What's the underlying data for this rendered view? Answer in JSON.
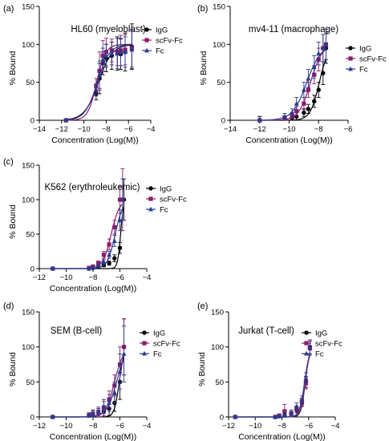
{
  "chart_data": [
    {
      "panel": "(a)",
      "type": "scatter",
      "title": "HL60 (myeloblast)",
      "xlabel": "Concentration (Log(M))",
      "ylabel": "% Bound",
      "xlim": [
        -14,
        -4
      ],
      "ylim": [
        0,
        150
      ],
      "xticks": [
        -14,
        -12,
        -10,
        -8,
        -6,
        -4
      ],
      "xtick_labels": [
        "−14",
        "−12",
        "−10",
        "−8",
        "−6",
        "−4"
      ],
      "yticks": [
        0,
        50,
        100,
        150
      ],
      "legend_position": "top-right",
      "series": [
        {
          "name": "IgG",
          "marker": "circle",
          "color": "#000000",
          "x": [
            -11.6,
            -8.9,
            -8.6,
            -8.3,
            -8.0,
            -7.5,
            -7.0,
            -6.7,
            -6.3,
            -5.7
          ],
          "y": [
            0,
            35,
            55,
            75,
            82,
            85,
            88,
            87,
            90,
            97
          ],
          "err": [
            2,
            8,
            20,
            15,
            18,
            18,
            22,
            20,
            25,
            30
          ]
        },
        {
          "name": "scFv-Fc",
          "marker": "square",
          "color": "#8b1a6b",
          "x": [
            -11.6,
            -8.9,
            -8.6,
            -8.3,
            -8.0,
            -7.5,
            -7.0,
            -6.7,
            -6.3,
            -5.7
          ],
          "y": [
            0,
            45,
            65,
            85,
            90,
            92,
            90,
            92,
            93,
            95
          ],
          "err": [
            2,
            10,
            25,
            20,
            18,
            15,
            18,
            20,
            20,
            25
          ]
        },
        {
          "name": "Fc",
          "marker": "triangle",
          "color": "#2a3b8f",
          "x": [
            -11.6,
            -8.9,
            -8.6,
            -8.3,
            -8.0,
            -7.5,
            -7.0,
            -6.7,
            -6.3,
            -5.7
          ],
          "y": [
            0,
            40,
            60,
            80,
            85,
            88,
            88,
            90,
            90,
            93
          ],
          "err": [
            2,
            8,
            18,
            15,
            15,
            15,
            20,
            18,
            20,
            25
          ]
        }
      ]
    },
    {
      "panel": "(b)",
      "type": "scatter",
      "title": "mv4-11 (macrophage)",
      "xlabel": "Concentration (Log(M))",
      "ylabel": "% Bound",
      "xlim": [
        -14,
        -6
      ],
      "ylim": [
        0,
        150
      ],
      "xticks": [
        -14,
        -12,
        -10,
        -8,
        -6
      ],
      "xtick_labels": [
        "−14",
        "−12",
        "−10",
        "−8",
        "−6"
      ],
      "yticks": [
        0,
        50,
        100,
        150
      ],
      "legend_position": "right",
      "series": [
        {
          "name": "IgG",
          "marker": "circle",
          "color": "#000000",
          "x": [
            -12,
            -10.3,
            -9.8,
            -9.5,
            -9.0,
            -8.7,
            -8.3,
            -8.0,
            -7.7,
            -7.5
          ],
          "y": [
            0,
            2,
            3,
            5,
            10,
            15,
            25,
            40,
            62,
            95
          ],
          "err": [
            5,
            3,
            4,
            5,
            5,
            6,
            8,
            10,
            15,
            20
          ]
        },
        {
          "name": "scFv-Fc",
          "marker": "square",
          "color": "#8b1a6b",
          "x": [
            -12,
            -10.3,
            -9.8,
            -9.5,
            -9.0,
            -8.7,
            -8.3,
            -8.0,
            -7.7,
            -7.5
          ],
          "y": [
            0,
            3,
            6,
            12,
            22,
            40,
            60,
            80,
            95,
            100
          ],
          "err": [
            5,
            3,
            4,
            6,
            8,
            10,
            12,
            15,
            18,
            20
          ]
        },
        {
          "name": "Fc",
          "marker": "triangle",
          "color": "#2a3b8f",
          "x": [
            -12,
            -10.3,
            -9.8,
            -9.5,
            -9.0,
            -8.7,
            -8.3,
            -8.0,
            -7.7,
            -7.5
          ],
          "y": [
            0,
            5,
            10,
            22,
            40,
            55,
            70,
            88,
            95,
            100
          ],
          "err": [
            5,
            4,
            5,
            8,
            10,
            12,
            15,
            15,
            18,
            20
          ]
        }
      ]
    },
    {
      "panel": "(c)",
      "type": "scatter",
      "title": "K562 (erythroleukemic)",
      "xlabel": "Concentration (Log(M))",
      "ylabel": "% Bound",
      "xlim": [
        -12,
        -4
      ],
      "ylim": [
        0,
        150
      ],
      "xticks": [
        -12,
        -10,
        -8,
        -6,
        -4
      ],
      "xtick_labels": [
        "−12",
        "−10",
        "−8",
        "−6",
        "−4"
      ],
      "yticks": [
        0,
        50,
        100,
        150
      ],
      "legend_position": "right",
      "series": [
        {
          "name": "IgG",
          "marker": "circle",
          "color": "#000000",
          "x": [
            -11,
            -8.3,
            -8.0,
            -7.6,
            -7.2,
            -6.8,
            -6.4,
            -6.0,
            -5.7
          ],
          "y": [
            0,
            0,
            1,
            3,
            5,
            8,
            15,
            30,
            100
          ],
          "err": [
            1,
            1,
            1,
            2,
            2,
            3,
            5,
            8,
            30
          ]
        },
        {
          "name": "scFv-Fc",
          "marker": "square",
          "color": "#8b1a6b",
          "x": [
            -11,
            -8.3,
            -8.0,
            -7.6,
            -7.2,
            -6.8,
            -6.4,
            -6.0,
            -5.8
          ],
          "y": [
            0,
            1,
            3,
            8,
            20,
            35,
            60,
            100,
            100
          ],
          "err": [
            1,
            1,
            2,
            3,
            5,
            8,
            10,
            20,
            45
          ]
        },
        {
          "name": "Fc",
          "marker": "triangle",
          "color": "#2a3b8f",
          "x": [
            -11,
            -8.3,
            -8.0,
            -7.6,
            -7.2,
            -6.8,
            -6.4,
            -6.0,
            -5.8
          ],
          "y": [
            0,
            0,
            2,
            5,
            10,
            20,
            40,
            70,
            100
          ],
          "err": [
            1,
            1,
            1,
            2,
            3,
            5,
            8,
            15,
            30
          ]
        }
      ]
    },
    {
      "panel": "(d)",
      "type": "scatter",
      "title": "SEM (B-cell)",
      "xlabel": "Concentration (Log(M))",
      "ylabel": "% Bound",
      "xlim": [
        -12,
        -4
      ],
      "ylim": [
        0,
        150
      ],
      "xticks": [
        -12,
        -10,
        -8,
        -6,
        -4
      ],
      "xtick_labels": [
        "−12",
        "−10",
        "−8",
        "−6",
        "−4"
      ],
      "yticks": [
        0,
        50,
        100,
        150
      ],
      "legend_position": "top-right",
      "series": [
        {
          "name": "IgG",
          "marker": "circle",
          "color": "#000000",
          "x": [
            -11,
            -8.3,
            -8.0,
            -7.6,
            -7.2,
            -6.8,
            -6.4,
            -6.0,
            -5.7
          ],
          "y": [
            0,
            2,
            3,
            5,
            8,
            12,
            20,
            50,
            100
          ],
          "err": [
            2,
            3,
            4,
            5,
            8,
            10,
            12,
            25,
            40
          ]
        },
        {
          "name": "scFv-Fc",
          "marker": "square",
          "color": "#8b1a6b",
          "x": [
            -11,
            -8.3,
            -8.0,
            -7.6,
            -7.2,
            -6.8,
            -6.4,
            -6.0,
            -5.7
          ],
          "y": [
            0,
            2,
            4,
            6,
            12,
            25,
            45,
            75,
            100
          ],
          "err": [
            2,
            3,
            5,
            6,
            10,
            12,
            15,
            25,
            40
          ]
        },
        {
          "name": "Fc",
          "marker": "triangle",
          "color": "#2a3b8f",
          "x": [
            -11,
            -8.3,
            -8.0,
            -7.6,
            -7.2,
            -6.8,
            -6.4,
            -6.0,
            -5.7
          ],
          "y": [
            0,
            3,
            5,
            8,
            15,
            20,
            35,
            65,
            90
          ],
          "err": [
            2,
            3,
            5,
            6,
            10,
            12,
            15,
            25,
            40
          ]
        }
      ]
    },
    {
      "panel": "(e)",
      "type": "scatter",
      "title": "Jurkat (T-cell)",
      "xlabel": "Concentration (Log(M))",
      "ylabel": "% Bound",
      "xlim": [
        -12,
        -4
      ],
      "ylim": [
        0,
        150
      ],
      "xticks": [
        -12,
        -10,
        -8,
        -6,
        -4
      ],
      "xtick_labels": [
        "−12",
        "−10",
        "−8",
        "−6",
        "−4"
      ],
      "yticks": [
        0,
        50,
        100,
        150
      ],
      "legend_position": "top-right",
      "series": [
        {
          "name": "IgG",
          "marker": "circle",
          "color": "#000000",
          "x": [
            -11.5,
            -8.5,
            -8.2,
            -7.8,
            -7.3,
            -6.9,
            -6.5,
            -6.2,
            -5.9
          ],
          "y": [
            0,
            0,
            1,
            2,
            5,
            10,
            20,
            50,
            100
          ],
          "err": [
            2,
            1,
            2,
            3,
            3,
            4,
            5,
            8,
            10
          ]
        },
        {
          "name": "scFv-Fc",
          "marker": "square",
          "color": "#8b1a6b",
          "x": [
            -11.5,
            -8.5,
            -8.2,
            -7.8,
            -7.3,
            -6.9,
            -6.5,
            -6.2,
            -5.9
          ],
          "y": [
            0,
            0,
            2,
            8,
            5,
            12,
            22,
            48,
            98
          ],
          "err": [
            2,
            1,
            2,
            10,
            3,
            4,
            5,
            8,
            10
          ]
        },
        {
          "name": "Fc",
          "marker": "triangle",
          "color": "#2a3b8f",
          "x": [
            -11.5,
            -8.5,
            -8.2,
            -7.8,
            -7.3,
            -6.9,
            -6.5,
            -6.2,
            -5.9
          ],
          "y": [
            0,
            0,
            1,
            3,
            6,
            15,
            25,
            55,
            100
          ],
          "err": [
            2,
            1,
            2,
            3,
            4,
            5,
            5,
            8,
            10
          ]
        }
      ]
    }
  ]
}
